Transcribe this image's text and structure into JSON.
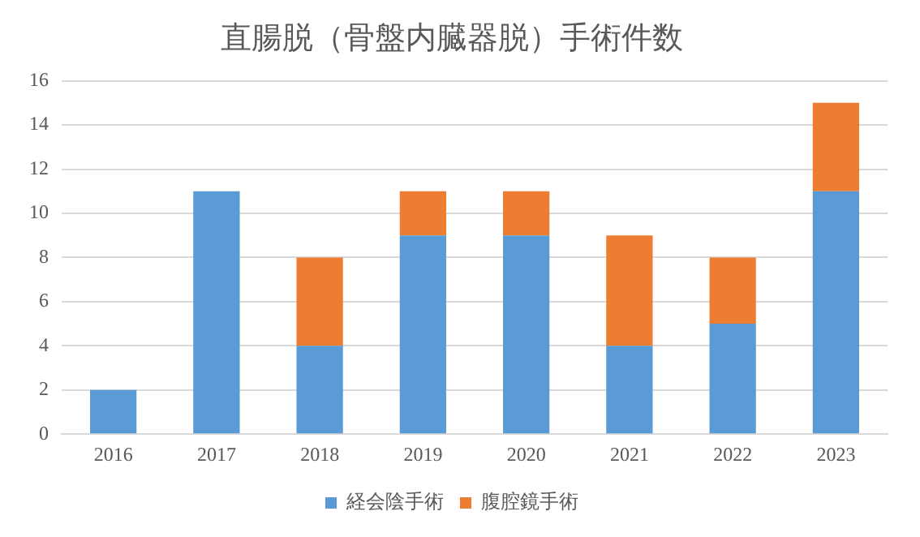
{
  "chart_data": {
    "type": "bar",
    "title": "直腸脱（骨盤内臓器脱）手術件数",
    "categories": [
      "2016",
      "2017",
      "2018",
      "2019",
      "2020",
      "2021",
      "2022",
      "2023"
    ],
    "series": [
      {
        "name": "経会陰手術",
        "color": "#5b9bd5",
        "values": [
          2,
          11,
          4,
          9,
          9,
          4,
          5,
          11
        ]
      },
      {
        "name": "腹腔鏡手術",
        "color": "#ed7d31",
        "values": [
          0,
          0,
          4,
          2,
          2,
          5,
          3,
          4
        ]
      }
    ],
    "stacked": true,
    "ylim": [
      0,
      16
    ],
    "yticks": [
      0,
      2,
      4,
      6,
      8,
      10,
      12,
      14,
      16
    ],
    "grid": "y",
    "legend": "bottom"
  }
}
